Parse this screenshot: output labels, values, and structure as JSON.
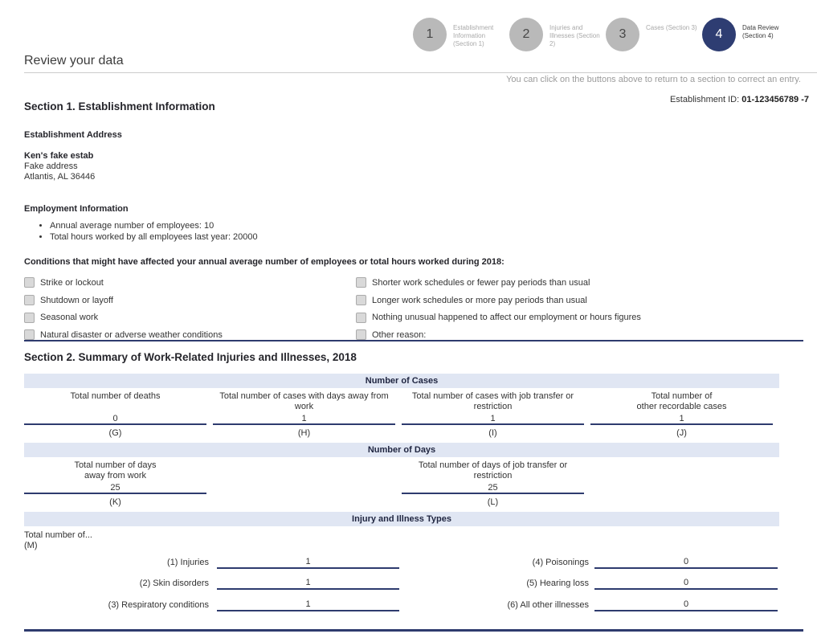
{
  "colors": {
    "accent_navy": "#2e3b6e",
    "band_background": "#e0e6f3",
    "inactive_circle": "#b9b9b9"
  },
  "page": {
    "title": "Review your data"
  },
  "stepper": {
    "hint": "You can click on the buttons above to return to a section to correct an entry.",
    "steps": [
      {
        "number": "1",
        "label": "Establishment Information (Section 1)"
      },
      {
        "number": "2",
        "label": "Injuries and Illnesses (Section 2)"
      },
      {
        "number": "3",
        "label": "Cases (Section 3)"
      },
      {
        "number": "4",
        "label": "Data Review (Section 4)"
      }
    ]
  },
  "section1": {
    "title": "Section 1. Establishment Information",
    "establishment_id": {
      "label": "Establishment ID:",
      "value": "01-123456789 -7"
    },
    "address": {
      "heading": "Establishment Address",
      "name": "Ken's fake estab",
      "line1": "Fake address",
      "line2": "Atlantis, AL 36446"
    },
    "employment": {
      "heading": "Employment Information",
      "bullets": [
        "Annual average number of employees: 10",
        "Total hours worked by all employees last year: 20000"
      ]
    },
    "conditions": {
      "heading": "Conditions that might have affected your annual average number of employees or total hours worked during 2018:",
      "left": [
        "Strike or lockout",
        "Shutdown or layoff",
        "Seasonal work",
        "Natural disaster or adverse weather conditions"
      ],
      "right": [
        "Shorter work schedules or fewer pay periods than usual",
        "Longer work schedules or more pay periods than usual",
        "Nothing unusual happened to affect our employment or hours figures",
        "Other reason:"
      ]
    }
  },
  "section2": {
    "title": "Section 2. Summary of Work-Related Injuries and Illnesses, 2018",
    "cases": {
      "band": "Number of Cases",
      "cells": [
        {
          "label": "Total number of deaths",
          "value": "0",
          "code": "(G)"
        },
        {
          "label": "Total number of cases with days away from work",
          "value": "1",
          "code": "(H)"
        },
        {
          "label": "Total number of cases with job transfer or\nrestriction",
          "value": "1",
          "code": "(I)"
        },
        {
          "label": "Total number of\nother recordable cases",
          "value": "1",
          "code": "(J)"
        }
      ]
    },
    "days": {
      "band": "Number of Days",
      "cells": [
        {
          "label": "Total number of days\naway from work",
          "value": "25",
          "code": "(K)"
        },
        {
          "label": "",
          "value": "",
          "code": ""
        },
        {
          "label": "Total number of days of job transfer or\nrestriction",
          "value": "25",
          "code": "(L)"
        },
        {
          "label": "",
          "value": "",
          "code": ""
        }
      ]
    },
    "types": {
      "band": "Injury and Illness Types",
      "intro": "Total number of...",
      "code": "(M)",
      "left": [
        {
          "label": "(1) Injuries",
          "value": "1"
        },
        {
          "label": "(2) Skin disorders",
          "value": "1"
        },
        {
          "label": "(3) Respiratory conditions",
          "value": "1"
        }
      ],
      "right": [
        {
          "label": "(4) Poisonings",
          "value": "0"
        },
        {
          "label": "(5) Hearing loss",
          "value": "0"
        },
        {
          "label": "(6) All other illnesses",
          "value": "0"
        }
      ]
    }
  }
}
